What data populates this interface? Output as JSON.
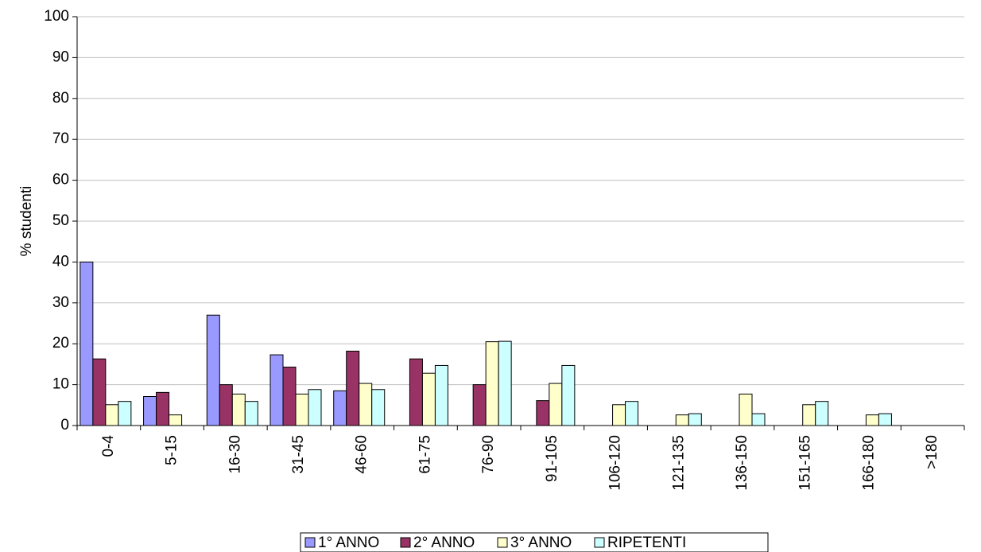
{
  "chart_data": {
    "type": "bar",
    "y_label": "% studenti",
    "categories": [
      "0-4",
      "5-15",
      "16-30",
      "31-45",
      "46-60",
      "61-75",
      "76-90",
      "91-105",
      "106-120",
      "121-135",
      "136-150",
      "151-165",
      "166-180",
      ">180"
    ],
    "series": [
      {
        "name": "1° ANNO",
        "color": "#9999ff",
        "values": [
          40,
          7.1,
          27,
          17.3,
          8.5,
          0,
          0,
          0,
          0,
          0,
          0,
          0,
          0,
          0
        ]
      },
      {
        "name": "2° ANNO",
        "color": "#993366",
        "values": [
          16.3,
          8.1,
          10,
          14.3,
          18.2,
          16.3,
          10,
          6.1,
          0,
          0,
          0,
          0,
          0,
          0
        ]
      },
      {
        "name": "3° ANNO",
        "color": "#ffffcc",
        "values": [
          5.1,
          2.6,
          7.7,
          7.7,
          10.3,
          12.8,
          20.5,
          10.3,
          5.1,
          2.6,
          7.7,
          5.1,
          2.6,
          0
        ]
      },
      {
        "name": "RIPETENTI",
        "color": "#ccffff",
        "values": [
          5.9,
          0,
          5.9,
          8.8,
          8.8,
          14.7,
          20.6,
          14.7,
          5.9,
          2.9,
          2.9,
          5.9,
          2.9,
          0
        ]
      }
    ],
    "ylim": [
      0,
      100
    ],
    "yticks": [
      0,
      10,
      20,
      30,
      40,
      50,
      60,
      70,
      80,
      90,
      100
    ],
    "grid": true,
    "legend": "bottom"
  }
}
